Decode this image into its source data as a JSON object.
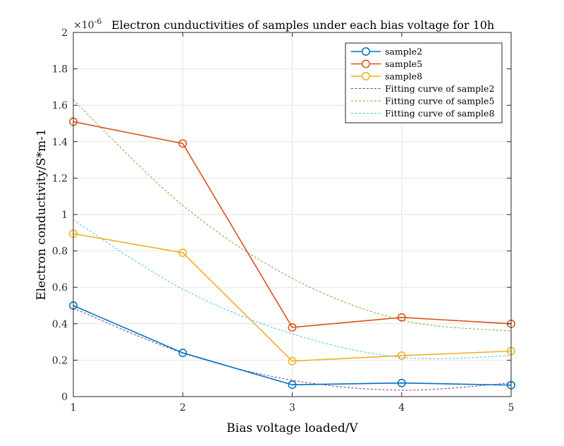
{
  "chart_data": {
    "type": "line",
    "title": "Electron cunductivities of samples under each bias voltage for 10h",
    "xlabel": "Bias voltage loaded/V",
    "ylabel": "Electron conductivity/S*m-1",
    "y_exponent_label": "×10",
    "y_exponent_value": "-6",
    "xlim": [
      1,
      5
    ],
    "ylim": [
      0,
      2
    ],
    "x_ticks": [
      1,
      2,
      3,
      4,
      5
    ],
    "x_tick_labels": [
      "1",
      "2",
      "3",
      "4",
      "5"
    ],
    "y_ticks": [
      0,
      0.2,
      0.4,
      0.6,
      0.8,
      1.0,
      1.2,
      1.4,
      1.6,
      1.8,
      2.0
    ],
    "y_tick_labels": [
      "0",
      "0.2",
      "0.4",
      "0.6",
      "0.8",
      "1",
      "1.2",
      "1.4",
      "1.6",
      "1.8",
      "2"
    ],
    "grid": true,
    "legend_position": "top-right",
    "x": [
      1,
      2,
      3,
      4,
      5
    ],
    "series": [
      {
        "name": "sample2",
        "color": "#0072BD",
        "style": "solid-markers",
        "values": [
          0.5,
          0.24,
          0.065,
          0.075,
          0.063
        ]
      },
      {
        "name": "sample5",
        "color": "#D95319",
        "style": "solid-markers",
        "values": [
          1.51,
          1.39,
          0.38,
          0.435,
          0.4
        ]
      },
      {
        "name": "sample8",
        "color": "#EDB120",
        "style": "solid-markers",
        "values": [
          0.895,
          0.79,
          0.195,
          0.225,
          0.25
        ]
      },
      {
        "name": "Fitting curve of sample2",
        "color": "#7E2F8E",
        "style": "dashed",
        "values": [
          0.485,
          0.24,
          0.09,
          0.035,
          0.075
        ]
      },
      {
        "name": "Fitting curve of sample5",
        "color": "#77AC30",
        "style": "dashed",
        "values": [
          1.63,
          1.05,
          0.65,
          0.42,
          0.36
        ]
      },
      {
        "name": "Fitting curve of sample8",
        "color": "#4DBEEE",
        "style": "dashed",
        "values": [
          0.97,
          0.59,
          0.345,
          0.215,
          0.225
        ]
      }
    ]
  }
}
